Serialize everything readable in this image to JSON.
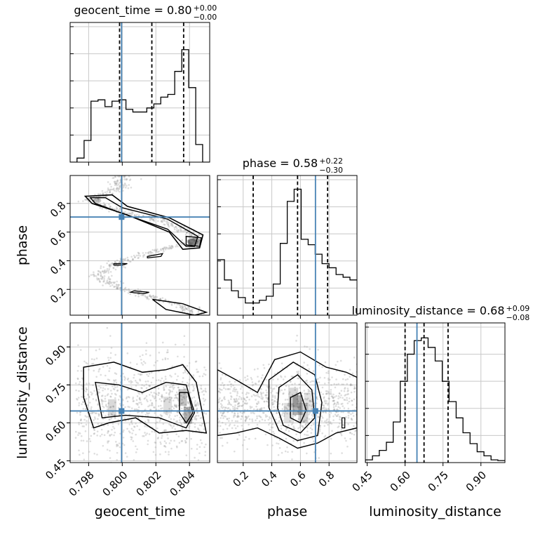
{
  "chart_data": {
    "type": "corner",
    "colors": {
      "truth": "#4682b4",
      "hist": "#000000",
      "grid": "#c8c8c8",
      "points": "#a0a0a0"
    },
    "parameters": [
      {
        "key": "geocent_time",
        "label": "geocent_time",
        "truth": 0.79996,
        "range": [
          0.7969,
          0.8052
        ],
        "ticks": [
          0.798,
          0.8,
          0.802,
          0.804
        ],
        "tick_labels": [
          "0.798",
          "0.800",
          "0.802",
          "0.804"
        ],
        "quantiles": [
          0.79984,
          0.80176,
          0.80365
        ],
        "title_base": "geocent_time = 0.80",
        "title_plus": "+0.00",
        "title_minus": "−0.00"
      },
      {
        "key": "phase",
        "label": "phase",
        "truth": 0.705,
        "range": [
          0.02,
          0.995
        ],
        "ticks": [
          0.2,
          0.4,
          0.6,
          0.8
        ],
        "tick_labels": [
          "0.2",
          "0.4",
          "0.6",
          "0.8"
        ],
        "quantiles": [
          0.27,
          0.58,
          0.79
        ],
        "title_base": "phase = 0.58",
        "title_plus": "+0.22",
        "title_minus": "−0.30"
      },
      {
        "key": "luminosity_distance",
        "label": "luminosity_distance",
        "truth": 0.647,
        "range": [
          0.443,
          0.995
        ],
        "ticks": [
          0.45,
          0.6,
          0.75,
          0.9
        ],
        "tick_labels": [
          "0.45",
          "0.60",
          "0.75",
          "0.90"
        ],
        "quantiles": [
          0.6,
          0.675,
          0.77
        ],
        "title_base": "luminosity_distance = 0.68",
        "title_plus": "+0.09",
        "title_minus": "−0.08"
      }
    ],
    "histograms": [
      {
        "param": "geocent_time",
        "ymax": 1.0,
        "edges": [
          0.7969,
          0.79731,
          0.79773,
          0.79814,
          0.79856,
          0.79897,
          0.79939,
          0.7998,
          0.80022,
          0.80063,
          0.80105,
          0.80146,
          0.80188,
          0.80229,
          0.80271,
          0.80312,
          0.80354,
          0.80395,
          0.80437,
          0.80478,
          0.8052
        ],
        "counts": [
          0.0,
          0.03,
          0.16,
          0.45,
          0.46,
          0.41,
          0.45,
          0.46,
          0.39,
          0.37,
          0.37,
          0.4,
          0.43,
          0.48,
          0.5,
          0.67,
          0.83,
          0.55,
          0.13,
          0.0
        ]
      },
      {
        "param": "phase",
        "ymax": 1.0,
        "edges": [
          0.02,
          0.069,
          0.118,
          0.166,
          0.215,
          0.264,
          0.313,
          0.361,
          0.41,
          0.459,
          0.508,
          0.556,
          0.605,
          0.654,
          0.703,
          0.751,
          0.8,
          0.849,
          0.898,
          0.946,
          0.995
        ],
        "counts": [
          0.41,
          0.26,
          0.18,
          0.13,
          0.09,
          0.09,
          0.11,
          0.14,
          0.23,
          0.53,
          0.84,
          0.93,
          0.56,
          0.52,
          0.45,
          0.38,
          0.35,
          0.3,
          0.28,
          0.26
        ]
      },
      {
        "param": "luminosity_distance",
        "ymax": 1.0,
        "edges": [
          0.443,
          0.471,
          0.498,
          0.526,
          0.553,
          0.581,
          0.609,
          0.636,
          0.664,
          0.691,
          0.719,
          0.747,
          0.774,
          0.802,
          0.829,
          0.857,
          0.885,
          0.912,
          0.94,
          0.967,
          0.995
        ],
        "counts": [
          0.02,
          0.05,
          0.09,
          0.15,
          0.3,
          0.6,
          0.8,
          0.9,
          0.92,
          0.85,
          0.75,
          0.6,
          0.45,
          0.33,
          0.22,
          0.14,
          0.08,
          0.05,
          0.02,
          0.015
        ]
      }
    ],
    "pairs": [
      {
        "x": "geocent_time",
        "y": "phase"
      },
      {
        "x": "geocent_time",
        "y": "luminosity_distance"
      },
      {
        "x": "phase",
        "y": "luminosity_distance"
      }
    ]
  }
}
